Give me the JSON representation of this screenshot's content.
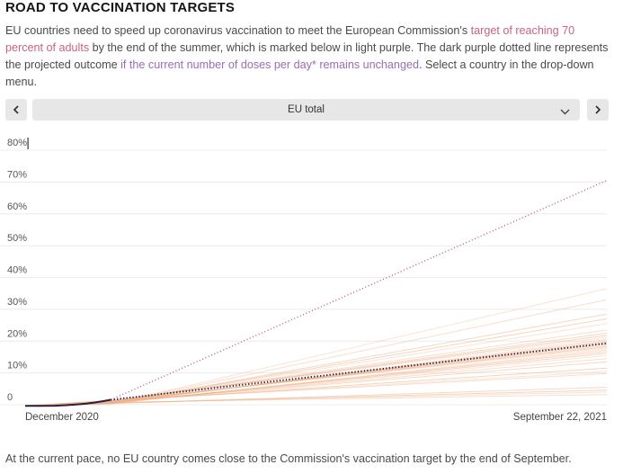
{
  "page": {
    "title": "ROAD TO VACCINATION TARGETS",
    "intro": {
      "seg1": "EU countries need to speed up coronavirus vaccination to meet the European Commission's ",
      "link_target": "target of reaching 70 percent of adults",
      "seg2": " by the end of the summer, which is marked below in light purple. The dark purple dotted line represents the projected outcome ",
      "link_pace": "if the current number of doses per day* remains unchanged",
      "seg3": ". Select a country in the drop-down menu."
    },
    "footer": "At the current pace, no EU country comes close to the Commission's vaccination target by the end of September."
  },
  "controls": {
    "dropdown_value": "EU total",
    "icons": {
      "prev": "chevron-left",
      "next": "chevron-right",
      "dropdown": "chevron-down"
    }
  },
  "colors": {
    "title_text": "#161616",
    "body_text": "#4a4a4a",
    "pink_accent": "#ca6186",
    "purple_accent": "#9a6cb5",
    "target_line": "#c75f82",
    "eu_line_dark": "#2d1e3e",
    "country_line_peach": "#eeb28a",
    "gridline": "#ececec",
    "axis_text": "#555555",
    "control_bg": "#e7e7e7"
  },
  "chart_data": {
    "type": "line",
    "title": "",
    "xlabel_left": "December 2020",
    "xlabel_right": "September 22, 2021",
    "ylim": [
      0,
      80
    ],
    "grid": true,
    "yticks": [
      {
        "value": 80,
        "label": "80%"
      },
      {
        "value": 70,
        "label": "70%"
      },
      {
        "value": 60,
        "label": "60%"
      },
      {
        "value": 50,
        "label": "50%"
      },
      {
        "value": 40,
        "label": "40%"
      },
      {
        "value": 30,
        "label": "30%"
      },
      {
        "value": 20,
        "label": "20%"
      },
      {
        "value": 10,
        "label": "10%"
      },
      {
        "value": 0,
        "label": "0"
      }
    ],
    "today_fraction": 0.147,
    "series": {
      "eu_actual": {
        "name": "EU total — actual vaccination share",
        "style": "solid",
        "color": "#2d1e3e",
        "points": [
          [
            0,
            -0.35
          ],
          [
            0.025,
            -0.35
          ],
          [
            0.05,
            -0.3
          ],
          [
            0.07,
            -0.15
          ],
          [
            0.09,
            0.1
          ],
          [
            0.105,
            0.35
          ],
          [
            0.12,
            0.7
          ],
          [
            0.133,
            1.1
          ],
          [
            0.147,
            1.55
          ]
        ]
      },
      "eu_projection": {
        "name": "EU total — projection at current pace",
        "style": "dotted",
        "color": "#2d1e3e",
        "start_pct": 1.55,
        "end_pct": 19.3
      },
      "target": {
        "name": "Path required to reach Commission target (70% of adults)",
        "style": "dotted",
        "color": "#c75f82",
        "start_pct": 1.55,
        "end_pct": 70.5
      },
      "countries": {
        "name": "Individual EU countries — projections at current pace",
        "style": "solid",
        "color": "#eeb28a",
        "end_pcts": [
          36.5,
          33,
          28.5,
          27,
          25.5,
          23.5,
          22.5,
          21.8,
          21.2,
          20.6,
          20.1,
          19.7,
          19.3,
          19.0,
          18.6,
          18.2,
          17.8,
          17.3,
          16.8,
          16.2,
          15.5,
          14.5,
          13.5,
          11.5,
          10.5,
          9.8,
          5.5,
          4.6,
          4.0,
          3.2
        ]
      }
    }
  }
}
